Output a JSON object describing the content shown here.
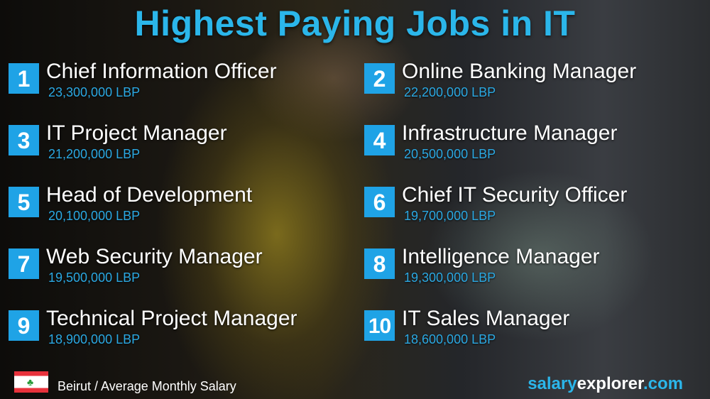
{
  "title": "Highest Paying Jobs in IT",
  "jobs": [
    {
      "rank": "1",
      "title": "Chief Information Officer",
      "salary": "23,300,000 LBP"
    },
    {
      "rank": "2",
      "title": "Online Banking Manager",
      "salary": "22,200,000 LBP"
    },
    {
      "rank": "3",
      "title": "IT Project Manager",
      "salary": "21,200,000 LBP"
    },
    {
      "rank": "4",
      "title": "Infrastructure Manager",
      "salary": "20,500,000 LBP"
    },
    {
      "rank": "5",
      "title": "Head of Development",
      "salary": "20,100,000 LBP"
    },
    {
      "rank": "6",
      "title": "Chief IT Security Officer",
      "salary": "19,700,000 LBP"
    },
    {
      "rank": "7",
      "title": "Web Security Manager",
      "salary": "19,500,000 LBP"
    },
    {
      "rank": "8",
      "title": "Intelligence Manager",
      "salary": "19,300,000 LBP"
    },
    {
      "rank": "9",
      "title": "Technical Project Manager",
      "salary": "18,900,000 LBP"
    },
    {
      "rank": "10",
      "title": "IT Sales Manager",
      "salary": "18,600,000 LBP"
    }
  ],
  "footer": {
    "flag_icon": "lebanon-flag",
    "location": "Beirut / Average Monthly Salary",
    "brand_part1": "salary",
    "brand_part2": "explorer",
    "brand_part3": ".com"
  },
  "colors": {
    "accent": "#1fa3e6",
    "salary_text": "#2ba9e3",
    "title": "#2bb6ea"
  }
}
